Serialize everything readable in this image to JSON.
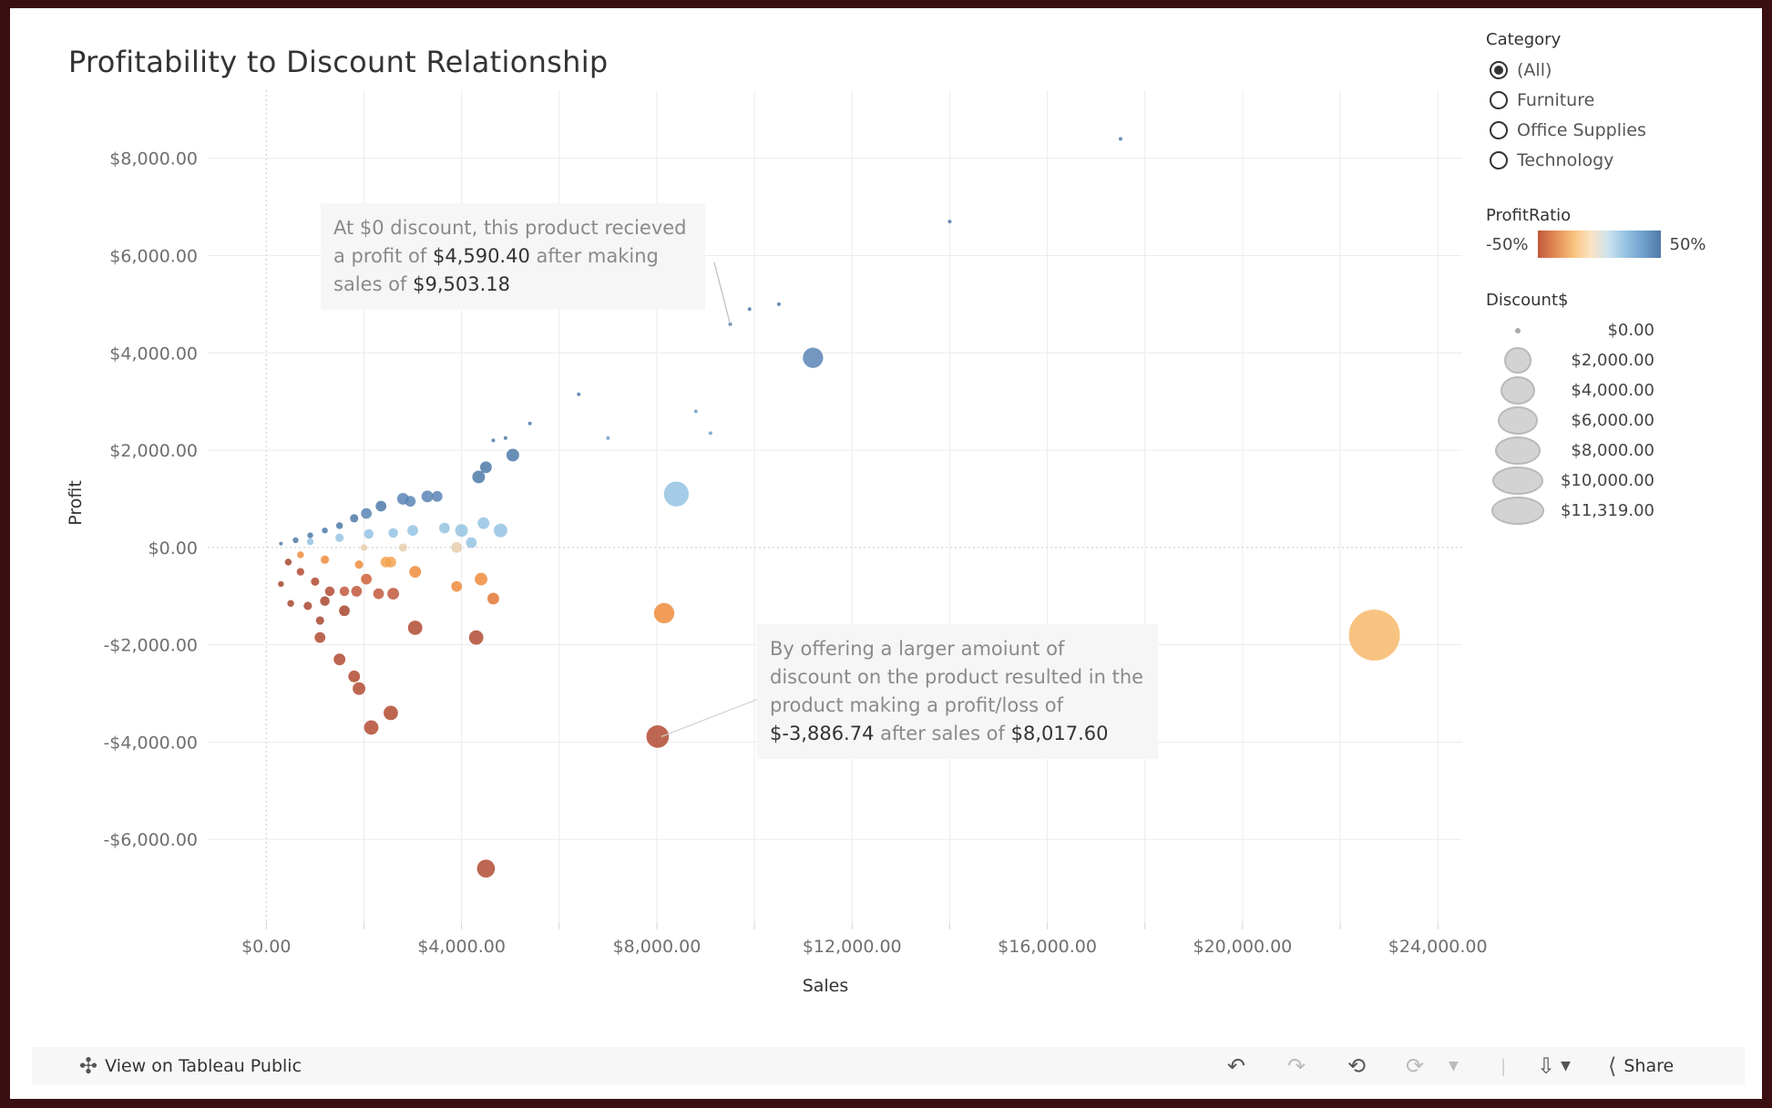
{
  "title": "Profitability  to Discount Relationship",
  "chart_data": {
    "type": "scatter",
    "xlabel": "Sales",
    "ylabel": "Profit",
    "xlim": [
      -1200,
      24500
    ],
    "ylim": [
      -7700,
      9400
    ],
    "x_ticks": [
      0,
      4000,
      8000,
      12000,
      16000,
      20000,
      24000
    ],
    "x_tick_labels": [
      "$0.00",
      "$4,000.00",
      "$8,000.00",
      "$12,000.00",
      "$16,000.00",
      "$20,000.00",
      "$24,000.00"
    ],
    "y_ticks": [
      8000,
      6000,
      4000,
      2000,
      0,
      -2000,
      -4000,
      -6000
    ],
    "y_tick_labels": [
      "$8,000.00",
      "$6,000.00",
      "$4,000.00",
      "$2,000.00",
      "$0.00",
      "-$2,000.00",
      "-$4,000.00",
      "-$6,000.00"
    ],
    "color_by": "ProfitRatio",
    "size_by": "Discount$",
    "grid": true,
    "points": [
      {
        "x": 17500,
        "y": 8400,
        "d": 0,
        "c": "#4f7aa8"
      },
      {
        "x": 14000,
        "y": 6700,
        "d": 0,
        "c": "#4f7aa8"
      },
      {
        "x": 10500,
        "y": 5000,
        "d": 0,
        "c": "#4f7aa8"
      },
      {
        "x": 9900,
        "y": 4900,
        "d": 0,
        "c": "#4f7aa8"
      },
      {
        "x": 9503.18,
        "y": 4590.4,
        "d": 0,
        "c": "#4f7aa8"
      },
      {
        "x": 11200,
        "y": 3900,
        "d": 1800,
        "c": "#5a85b5"
      },
      {
        "x": 6400,
        "y": 3150,
        "d": 0,
        "c": "#4f7aa8"
      },
      {
        "x": 8800,
        "y": 2800,
        "d": 0,
        "c": "#6f9fcb"
      },
      {
        "x": 9100,
        "y": 2350,
        "d": 0,
        "c": "#6f9fcb"
      },
      {
        "x": 7000,
        "y": 2250,
        "d": 0,
        "c": "#6f9fcb"
      },
      {
        "x": 5400,
        "y": 2550,
        "d": 0,
        "c": "#4f7aa8"
      },
      {
        "x": 4900,
        "y": 2250,
        "d": 0,
        "c": "#4f7aa8"
      },
      {
        "x": 4650,
        "y": 2200,
        "d": 0,
        "c": "#4f7aa8"
      },
      {
        "x": 5050,
        "y": 1900,
        "d": 700,
        "c": "#4f7aa8"
      },
      {
        "x": 4500,
        "y": 1650,
        "d": 600,
        "c": "#4f7aa8"
      },
      {
        "x": 4350,
        "y": 1450,
        "d": 700,
        "c": "#4f7aa8"
      },
      {
        "x": 8400,
        "y": 1100,
        "d": 2700,
        "c": "#94c3e2"
      },
      {
        "x": 3300,
        "y": 1050,
        "d": 600,
        "c": "#5a85b5"
      },
      {
        "x": 3500,
        "y": 1050,
        "d": 500,
        "c": "#5a85b5"
      },
      {
        "x": 2800,
        "y": 1000,
        "d": 600,
        "c": "#5a85b5"
      },
      {
        "x": 2950,
        "y": 950,
        "d": 500,
        "c": "#5a85b5"
      },
      {
        "x": 2350,
        "y": 850,
        "d": 500,
        "c": "#4f7aa8"
      },
      {
        "x": 2050,
        "y": 700,
        "d": 500,
        "c": "#5a85b5"
      },
      {
        "x": 1800,
        "y": 600,
        "d": 300,
        "c": "#4f7aa8"
      },
      {
        "x": 1500,
        "y": 450,
        "d": 200,
        "c": "#4f7aa8"
      },
      {
        "x": 1200,
        "y": 350,
        "d": 150,
        "c": "#4f7aa8"
      },
      {
        "x": 900,
        "y": 250,
        "d": 100,
        "c": "#4f7aa8"
      },
      {
        "x": 600,
        "y": 150,
        "d": 50,
        "c": "#4f7aa8"
      },
      {
        "x": 300,
        "y": 80,
        "d": 0,
        "c": "#4f7aa8"
      },
      {
        "x": 4800,
        "y": 350,
        "d": 800,
        "c": "#94c3e2"
      },
      {
        "x": 4450,
        "y": 500,
        "d": 600,
        "c": "#94c3e2"
      },
      {
        "x": 4000,
        "y": 350,
        "d": 700,
        "c": "#94c3e2"
      },
      {
        "x": 3650,
        "y": 400,
        "d": 500,
        "c": "#94c3e2"
      },
      {
        "x": 3000,
        "y": 350,
        "d": 500,
        "c": "#94c3e2"
      },
      {
        "x": 2600,
        "y": 300,
        "d": 400,
        "c": "#94c3e2"
      },
      {
        "x": 2100,
        "y": 280,
        "d": 400,
        "c": "#94c3e2"
      },
      {
        "x": 1500,
        "y": 200,
        "d": 300,
        "c": "#94c3e2"
      },
      {
        "x": 900,
        "y": 120,
        "d": 200,
        "c": "#94c3e2"
      },
      {
        "x": 4200,
        "y": 100,
        "d": 500,
        "c": "#94c3e2"
      },
      {
        "x": 3900,
        "y": 0,
        "d": 500,
        "c": "#e7cfae"
      },
      {
        "x": 2800,
        "y": 0,
        "d": 300,
        "c": "#e7cfae"
      },
      {
        "x": 2000,
        "y": 0,
        "d": 200,
        "c": "#e7cfae"
      },
      {
        "x": 2550,
        "y": -300,
        "d": 500,
        "c": "#f4a24f"
      },
      {
        "x": 2450,
        "y": -300,
        "d": 500,
        "c": "#f4a24f"
      },
      {
        "x": 3050,
        "y": -500,
        "d": 600,
        "c": "#ee8c3c"
      },
      {
        "x": 1900,
        "y": -350,
        "d": 300,
        "c": "#ee8c3c"
      },
      {
        "x": 1200,
        "y": -250,
        "d": 300,
        "c": "#ee8c3c"
      },
      {
        "x": 700,
        "y": -150,
        "d": 200,
        "c": "#ee8c3c"
      },
      {
        "x": 3900,
        "y": -800,
        "d": 500,
        "c": "#ee8c3c"
      },
      {
        "x": 4400,
        "y": -650,
        "d": 700,
        "c": "#ee8c3c"
      },
      {
        "x": 4650,
        "y": -1050,
        "d": 600,
        "c": "#e47736"
      },
      {
        "x": 8150,
        "y": -1350,
        "d": 1800,
        "c": "#ee8c3c"
      },
      {
        "x": 22700,
        "y": -1800,
        "d": 11319,
        "c": "#f7b86b"
      },
      {
        "x": 2050,
        "y": -650,
        "d": 500,
        "c": "#d0603a"
      },
      {
        "x": 1850,
        "y": -900,
        "d": 500,
        "c": "#c2583c"
      },
      {
        "x": 2300,
        "y": -950,
        "d": 500,
        "c": "#c2583c"
      },
      {
        "x": 2600,
        "y": -950,
        "d": 600,
        "c": "#c2583c"
      },
      {
        "x": 1600,
        "y": -900,
        "d": 400,
        "c": "#c2583c"
      },
      {
        "x": 1300,
        "y": -900,
        "d": 400,
        "c": "#b24b32"
      },
      {
        "x": 1000,
        "y": -700,
        "d": 300,
        "c": "#b24b32"
      },
      {
        "x": 700,
        "y": -500,
        "d": 250,
        "c": "#b24b32"
      },
      {
        "x": 450,
        "y": -300,
        "d": 200,
        "c": "#a84630"
      },
      {
        "x": 1600,
        "y": -1300,
        "d": 500,
        "c": "#a84630"
      },
      {
        "x": 1200,
        "y": -1100,
        "d": 400,
        "c": "#a84630"
      },
      {
        "x": 850,
        "y": -1200,
        "d": 300,
        "c": "#a84630"
      },
      {
        "x": 1100,
        "y": -1500,
        "d": 300,
        "c": "#a84630"
      },
      {
        "x": 500,
        "y": -1150,
        "d": 200,
        "c": "#a84630"
      },
      {
        "x": 300,
        "y": -750,
        "d": 150,
        "c": "#a84630"
      },
      {
        "x": 3050,
        "y": -1650,
        "d": 900,
        "c": "#b24b32"
      },
      {
        "x": 1100,
        "y": -1850,
        "d": 500,
        "c": "#b24b32"
      },
      {
        "x": 4300,
        "y": -1850,
        "d": 900,
        "c": "#b24b32"
      },
      {
        "x": 1500,
        "y": -2300,
        "d": 600,
        "c": "#b24b32"
      },
      {
        "x": 1800,
        "y": -2650,
        "d": 600,
        "c": "#b24b32"
      },
      {
        "x": 1900,
        "y": -2900,
        "d": 700,
        "c": "#b24b32"
      },
      {
        "x": 2550,
        "y": -3400,
        "d": 900,
        "c": "#b24b32"
      },
      {
        "x": 2150,
        "y": -3700,
        "d": 900,
        "c": "#b24b32"
      },
      {
        "x": 8017.6,
        "y": -3886.74,
        "d": 2200,
        "c": "#b24b32"
      },
      {
        "x": 4500,
        "y": -6600,
        "d": 1400,
        "c": "#b24b32"
      }
    ]
  },
  "annotations": [
    {
      "pre": "At $0 discount, this product recieved a profit of ",
      "v1": "$4,590.40",
      "mid": " after making sales of ",
      "v2": "$9,503.18",
      "post": ""
    },
    {
      "pre": "By offering a larger amoiunt of discount on the product resulted in the product making a profit/loss of ",
      "v1": "$-3,886.74",
      "mid": " after sales of ",
      "v2": "$8,017.60",
      "post": ""
    }
  ],
  "legend": {
    "category_title": "Category",
    "category_options": [
      "(All)",
      "Furniture",
      "Office Supplies",
      "Technology"
    ],
    "category_selected": "(All)",
    "ratio_title": "ProfitRatio",
    "ratio_min": "-50%",
    "ratio_max": "50%",
    "ratio_colors": [
      "#c2583c",
      "#f7c17c",
      "#cfe3f0",
      "#4f7aa8"
    ],
    "size_title": "Discount$",
    "size_values": [
      0,
      2000,
      4000,
      6000,
      8000,
      10000,
      11319
    ],
    "size_labels": [
      "$0.00",
      "$2,000.00",
      "$4,000.00",
      "$6,000.00",
      "$8,000.00",
      "$10,000.00",
      "$11,319.00"
    ]
  },
  "toolbar": {
    "view_label": "View on Tableau Public",
    "share_label": "Share",
    "icons": [
      "tableau-logo-icon",
      "undo-icon",
      "redo-icon",
      "revert-icon",
      "refresh-icon",
      "chevron-down-icon",
      "download-icon",
      "share-icon"
    ]
  }
}
